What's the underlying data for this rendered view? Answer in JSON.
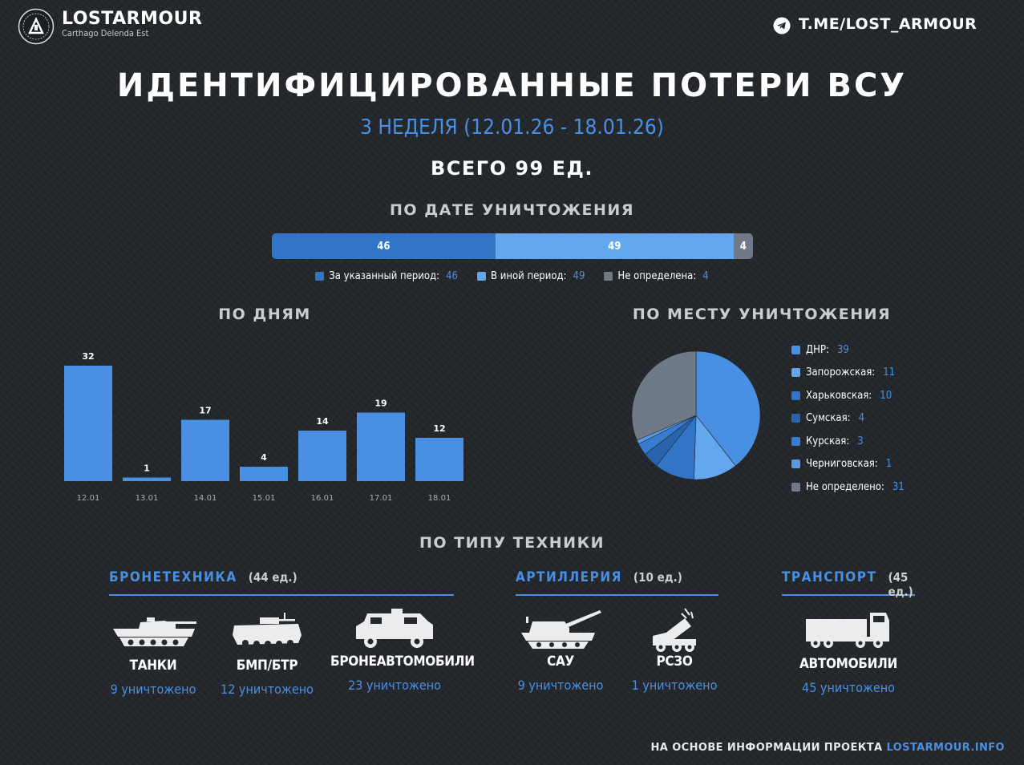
{
  "header": {
    "brand": "LOSTARMOUR",
    "motto": "Carthago Delenda Est",
    "telegram": "T.ME/LOST_ARMOUR"
  },
  "title": "ИДЕНТИФИЦИРОВАННЫЕ ПОТЕРИ ВСУ",
  "week": "3 НЕДЕЛЯ (12.01.26 - 18.01.26)",
  "total": "ВСЕГО 99 ЕД.",
  "sections": {
    "by_date": "ПО ДАТЕ УНИЧТОЖЕНИЯ",
    "by_day": "ПО ДНЯМ",
    "by_place": "ПО МЕСТУ УНИЧТОЖЕНИЯ",
    "by_type": "ПО ТИПУ ТЕХНИКИ"
  },
  "colors": {
    "accent": "#4a90e2",
    "light": "#63a8ee",
    "dark": "#3274c6",
    "darker": "#2a63ad",
    "gray": "#6f7a86"
  },
  "chart_data": [
    {
      "type": "bar",
      "stacked": true,
      "orientation": "horizontal",
      "title": "ПО ДАТЕ УНИЧТОЖЕНИЯ",
      "series": [
        {
          "name": "За указанный период",
          "value": 46,
          "color": "#3274c6"
        },
        {
          "name": "В иной период",
          "value": 49,
          "color": "#63a8ee"
        },
        {
          "name": "Не определена",
          "value": 4,
          "color": "#6f7a86"
        }
      ]
    },
    {
      "type": "bar",
      "title": "ПО ДНЯМ",
      "categories": [
        "12.01",
        "13.01",
        "14.01",
        "15.01",
        "16.01",
        "17.01",
        "18.01"
      ],
      "values": [
        32,
        1,
        17,
        4,
        14,
        19,
        12
      ]
    },
    {
      "type": "pie",
      "title": "ПО МЕСТУ УНИЧТОЖЕНИЯ",
      "legend": "right",
      "slices": [
        {
          "name": "ДНР",
          "value": 39,
          "color": "#4a90e2"
        },
        {
          "name": "Запорожская",
          "value": 11,
          "color": "#63a8ee"
        },
        {
          "name": "Харьковская",
          "value": 10,
          "color": "#3274c6"
        },
        {
          "name": "Сумская",
          "value": 4,
          "color": "#2a63ad"
        },
        {
          "name": "Курская",
          "value": 3,
          "color": "#3a7dd0"
        },
        {
          "name": "Черниговская",
          "value": 1,
          "color": "#5a9ae5"
        },
        {
          "name": "Не определено",
          "value": 31,
          "color": "#6f7a86"
        }
      ]
    }
  ],
  "categories": [
    {
      "label": "БРОНЕТЕХНИКА",
      "count": "(44 ед.)",
      "items": [
        {
          "name": "ТАНКИ",
          "count": "9 уничтожено",
          "icon": "tank-icon"
        },
        {
          "name": "БМП/БТР",
          "count": "12 уничтожено",
          "icon": "ifv-icon"
        },
        {
          "name": "БРОНЕАВТОМОБИЛИ",
          "count": "23 уничтожено",
          "icon": "armored-car-icon"
        }
      ]
    },
    {
      "label": "АРТИЛЛЕРИЯ",
      "count": "(10 ед.)",
      "items": [
        {
          "name": "САУ",
          "count": "9 уничтожено",
          "icon": "howitzer-icon"
        },
        {
          "name": "РСЗО",
          "count": "1 уничтожено",
          "icon": "mlrs-icon"
        }
      ]
    },
    {
      "label": "ТРАНСПОРТ",
      "count": "(45 ед.)",
      "items": [
        {
          "name": "АВТОМОБИЛИ",
          "count": "45 уничтожено",
          "icon": "truck-icon"
        }
      ]
    }
  ],
  "footer": {
    "prefix": "НА ОСНОВЕ ИНФОРМАЦИИ ПРОЕКТА",
    "site": "LOSTARMOUR.INFO"
  }
}
